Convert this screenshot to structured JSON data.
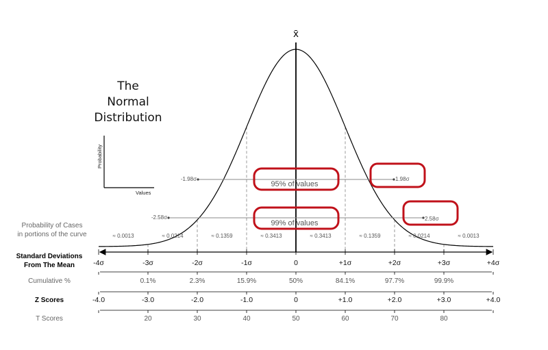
{
  "mean_symbol": "x̄",
  "title": [
    "The",
    "Normal",
    "Distribution"
  ],
  "inset": {
    "ylabel": "Probability",
    "xlabel": "Values"
  },
  "row_labels": {
    "probability": [
      "Probability of Cases",
      "in portions of the curve"
    ],
    "std_dev": [
      "Standard Deviations",
      "From The Mean"
    ],
    "cumulative": "Cumulative %",
    "z_scores": "Z Scores",
    "t_scores": "T Scores"
  },
  "intervals": {
    "p95": {
      "left": "-1.98σ",
      "right": "1.98σ",
      "label": "95% of values"
    },
    "p99": {
      "left": "-2.58σ",
      "right": "2.58σ",
      "label": "99% of values"
    }
  },
  "highlight_color": "#c0111a",
  "chart_data": {
    "type": "line",
    "x": [
      -4,
      -3,
      -2,
      -1,
      0,
      1,
      2,
      3,
      4
    ],
    "sigma_labels": [
      "-4σ",
      "-3σ",
      "-2σ",
      "-1σ",
      "0",
      "+1σ",
      "+2σ",
      "+3σ",
      "+4σ"
    ],
    "cumulative": [
      "",
      "0.1%",
      "2.3%",
      "15.9%",
      "50%",
      "84.1%",
      "97.7%",
      "99.9%",
      ""
    ],
    "z_scores": [
      "-4.0",
      "-3.0",
      "-2.0",
      "-1.0",
      "0",
      "+1.0",
      "+2.0",
      "+3.0",
      "+4.0"
    ],
    "t_scores": [
      "",
      "20",
      "30",
      "40",
      "50",
      "60",
      "70",
      "80",
      ""
    ],
    "segment_probabilities": [
      "≈ 0.0013",
      "≈ 0.0214",
      "≈ 0.1359",
      "≈ 0.3413",
      "≈ 0.3413",
      "≈ 0.1359",
      "≈ 0.0214",
      "≈ 0.0013"
    ],
    "xlim": [
      -4,
      4
    ]
  }
}
